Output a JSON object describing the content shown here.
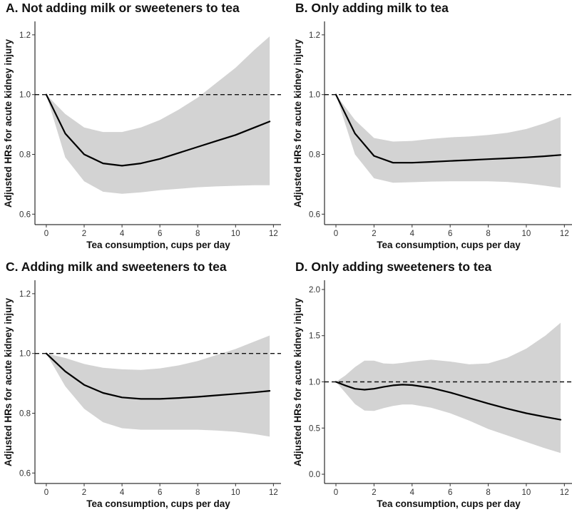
{
  "chart_data": [
    {
      "type": "line",
      "title": "A. Not adding milk or sweeteners to tea",
      "xlabel": "Tea consumption, cups per day",
      "ylabel": "Adjusted HRs for acute kidney injury",
      "xlim": [
        -0.6,
        12.4
      ],
      "ylim": [
        0.565,
        1.245
      ],
      "xticks": [
        0,
        2,
        4,
        6,
        8,
        10,
        12
      ],
      "yticks": [
        0.6,
        0.8,
        1.0,
        1.2
      ],
      "ytick_labels": [
        "0.6",
        "0.8",
        "1.0",
        "1.2"
      ],
      "reference_line": 1.0,
      "x": [
        0,
        1,
        2,
        3,
        4,
        5,
        6,
        7,
        8,
        9,
        10,
        11,
        11.8
      ],
      "hr": [
        1.0,
        0.87,
        0.8,
        0.77,
        0.762,
        0.77,
        0.785,
        0.805,
        0.825,
        0.845,
        0.865,
        0.89,
        0.91
      ],
      "lower": [
        1.0,
        0.79,
        0.71,
        0.675,
        0.668,
        0.673,
        0.68,
        0.685,
        0.69,
        0.693,
        0.695,
        0.697,
        0.697
      ],
      "upper": [
        1.0,
        0.935,
        0.89,
        0.875,
        0.875,
        0.89,
        0.915,
        0.95,
        0.99,
        1.04,
        1.09,
        1.15,
        1.195
      ]
    },
    {
      "type": "line",
      "title": "B. Only adding milk to tea",
      "xlabel": "Tea consumption, cups per day",
      "ylabel": "Adjusted HRs for acute kidney injury",
      "xlim": [
        -0.6,
        12.4
      ],
      "ylim": [
        0.565,
        1.245
      ],
      "xticks": [
        0,
        2,
        4,
        6,
        8,
        10,
        12
      ],
      "yticks": [
        0.6,
        0.8,
        1.0,
        1.2
      ],
      "ytick_labels": [
        "0.6",
        "0.8",
        "1.0",
        "1.2"
      ],
      "reference_line": 1.0,
      "x": [
        0,
        1,
        2,
        3,
        4,
        5,
        6,
        7,
        8,
        9,
        10,
        11,
        11.8
      ],
      "hr": [
        1.0,
        0.87,
        0.795,
        0.772,
        0.772,
        0.775,
        0.778,
        0.781,
        0.784,
        0.787,
        0.79,
        0.794,
        0.798
      ],
      "lower": [
        1.0,
        0.8,
        0.72,
        0.705,
        0.707,
        0.709,
        0.71,
        0.71,
        0.71,
        0.708,
        0.703,
        0.695,
        0.688
      ],
      "upper": [
        1.0,
        0.915,
        0.855,
        0.843,
        0.845,
        0.852,
        0.857,
        0.86,
        0.865,
        0.872,
        0.885,
        0.905,
        0.925
      ]
    },
    {
      "type": "line",
      "title": "C. Adding milk and sweeteners to tea",
      "xlabel": "Tea consumption, cups per day",
      "ylabel": "Adjusted HRs for acute kidney injury",
      "xlim": [
        -0.6,
        12.4
      ],
      "ylim": [
        0.565,
        1.245
      ],
      "xticks": [
        0,
        2,
        4,
        6,
        8,
        10,
        12
      ],
      "yticks": [
        0.6,
        0.8,
        1.0,
        1.2
      ],
      "ytick_labels": [
        "0.6",
        "0.8",
        "1.0",
        "1.2"
      ],
      "reference_line": 1.0,
      "x": [
        0,
        1,
        2,
        3,
        4,
        5,
        6,
        7,
        8,
        9,
        10,
        11,
        11.8
      ],
      "hr": [
        1.0,
        0.94,
        0.895,
        0.868,
        0.853,
        0.848,
        0.848,
        0.851,
        0.855,
        0.86,
        0.865,
        0.87,
        0.875
      ],
      "lower": [
        1.0,
        0.89,
        0.815,
        0.77,
        0.75,
        0.745,
        0.745,
        0.745,
        0.745,
        0.742,
        0.738,
        0.73,
        0.722
      ],
      "upper": [
        1.0,
        0.985,
        0.965,
        0.952,
        0.947,
        0.945,
        0.95,
        0.96,
        0.975,
        0.995,
        1.015,
        1.04,
        1.06
      ]
    },
    {
      "type": "line",
      "title": "D. Only adding sweeteners to tea",
      "xlabel": "Tea consumption, cups per day",
      "ylabel": "Adjusted HRs for acute kidney injury",
      "xlim": [
        -0.6,
        12.4
      ],
      "ylim": [
        -0.1,
        2.1
      ],
      "xticks": [
        0,
        2,
        4,
        6,
        8,
        10,
        12
      ],
      "yticks": [
        0.0,
        0.5,
        1.0,
        1.5,
        2.0
      ],
      "ytick_labels": [
        "0.0",
        "0.5",
        "1.0",
        "1.5",
        "2.0"
      ],
      "reference_line": 1.0,
      "x": [
        0,
        0.5,
        1,
        1.5,
        2,
        2.5,
        3,
        3.5,
        4,
        5,
        6,
        7,
        8,
        9,
        10,
        11,
        11.8
      ],
      "hr": [
        1.0,
        0.96,
        0.925,
        0.915,
        0.925,
        0.945,
        0.962,
        0.97,
        0.965,
        0.935,
        0.885,
        0.825,
        0.765,
        0.71,
        0.66,
        0.62,
        0.59
      ],
      "lower": [
        1.0,
        0.88,
        0.76,
        0.69,
        0.685,
        0.715,
        0.74,
        0.755,
        0.755,
        0.72,
        0.66,
        0.58,
        0.49,
        0.42,
        0.35,
        0.28,
        0.23
      ],
      "upper": [
        1.0,
        1.07,
        1.16,
        1.23,
        1.23,
        1.2,
        1.195,
        1.205,
        1.22,
        1.24,
        1.22,
        1.19,
        1.2,
        1.26,
        1.36,
        1.5,
        1.64
      ]
    }
  ]
}
